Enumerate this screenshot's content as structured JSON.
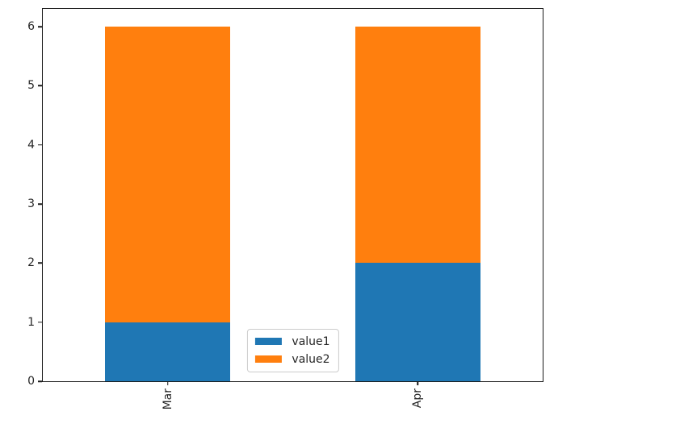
{
  "chart_data": {
    "type": "bar",
    "stacked": true,
    "orientation": "vertical",
    "categories": [
      "Mar",
      "Apr"
    ],
    "series": [
      {
        "name": "value1",
        "color": "#1f77b4",
        "values": [
          1,
          2
        ]
      },
      {
        "name": "value2",
        "color": "#ff7f0e",
        "values": [
          5,
          4
        ]
      }
    ],
    "stack_totals": [
      6,
      6
    ],
    "title": "",
    "xlabel": "",
    "ylabel": "",
    "xlim": [
      -0.5,
      1.5
    ],
    "ylim": [
      0,
      6.3
    ],
    "yticks": [
      "0",
      "1",
      "2",
      "3",
      "4",
      "5",
      "6"
    ],
    "bar_width": 0.5,
    "x_tick_rotation_deg": 90,
    "grid": false,
    "legend": {
      "entries": [
        "value1",
        "value2"
      ],
      "position": "lower center",
      "inside_plot": true
    }
  },
  "style": {
    "axis_color": "#1a1a1a",
    "tick_label_color": "#262626",
    "legend_border_color": "#cccccc"
  }
}
